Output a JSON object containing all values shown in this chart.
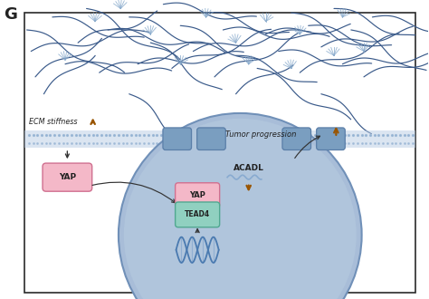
{
  "title_letter": "G",
  "background_color": "#ffffff",
  "border_color": "#2a2a2a",
  "ecm_bg_color": "#ffffff",
  "membrane_color": "#b8cce4",
  "membrane_dot_color": "#8fafd0",
  "cell_body_color": "#a8bdd8",
  "cell_body_edge": "#7090b8",
  "cell_body_inner_color": "#b8cde0",
  "receptor_color": "#7a9ec0",
  "receptor_edge": "#5a7ea8",
  "yap_box_color": "#f4b8c8",
  "yap_box_edge": "#d07090",
  "tead4_box_color": "#90d0c0",
  "tead4_box_edge": "#50a890",
  "dna_color_dark": "#4a7ab0",
  "dna_color_light": "#88aad0",
  "fiber_color": "#3a5a8a",
  "crosslink_color": "#88aacc",
  "arrow_color": "#333333",
  "orange_arrow_color": "#995500",
  "text_color": "#222222",
  "ecm_label": "ECM stiffness",
  "tumor_label": "Tumor progression",
  "acadl_label": "ACADL",
  "yap_label": "YAP",
  "tead4_label": "TEAD4"
}
